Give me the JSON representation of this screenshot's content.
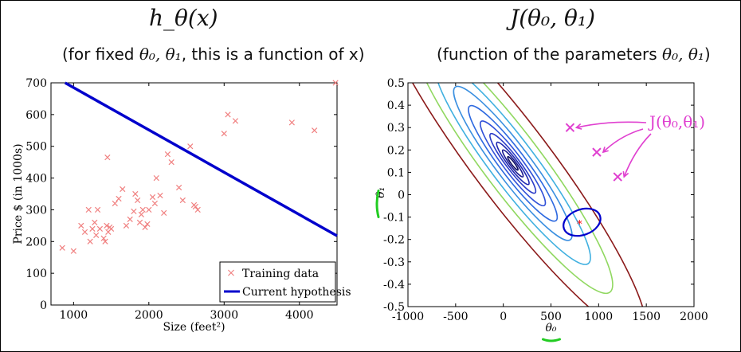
{
  "left_panel": {
    "title": "h_θ(x)",
    "subtitle_pre": "(for fixed ",
    "subtitle_math": "θ₀, θ₁",
    "subtitle_post": ", this is a function of x)"
  },
  "right_panel": {
    "title": "J(θ₀, θ₁)",
    "subtitle_pre": "(function of the parameters ",
    "subtitle_math": "θ₀, θ₁",
    "subtitle_post": ")"
  },
  "colors": {
    "training": "#f08080",
    "hypothesis": "#0000cc",
    "annotation": "#e040d0",
    "optimum": "#ff0000",
    "underline": "#22cc22"
  },
  "chart_data": [
    {
      "type": "scatter",
      "xlabel": "Size (feet²)",
      "ylabel": "Price $ (in 1000s)",
      "xlim": [
        700,
        4500
      ],
      "ylim": [
        0,
        700
      ],
      "xticks": [
        1000,
        2000,
        3000,
        4000
      ],
      "yticks": [
        0,
        100,
        200,
        300,
        400,
        500,
        600,
        700
      ],
      "legend_position": "bottom-right",
      "series": [
        {
          "name": "Training data",
          "marker": "x",
          "x": [
            850,
            1000,
            1100,
            1150,
            1200,
            1220,
            1250,
            1280,
            1300,
            1320,
            1350,
            1400,
            1420,
            1440,
            1450,
            1460,
            1480,
            1500,
            1550,
            1600,
            1650,
            1700,
            1750,
            1800,
            1820,
            1850,
            1880,
            1900,
            1920,
            1950,
            1980,
            2000,
            2050,
            2080,
            2100,
            2150,
            2200,
            2250,
            2300,
            2400,
            2450,
            2550,
            2600,
            2620,
            2650,
            3000,
            3050,
            3150,
            3900,
            4200,
            4480
          ],
          "y": [
            180,
            170,
            250,
            230,
            300,
            200,
            240,
            260,
            220,
            300,
            240,
            210,
            200,
            250,
            465,
            230,
            245,
            240,
            320,
            335,
            365,
            250,
            270,
            295,
            350,
            330,
            260,
            285,
            300,
            245,
            255,
            300,
            340,
            320,
            400,
            345,
            290,
            475,
            450,
            370,
            330,
            500,
            315,
            310,
            300,
            540,
            600,
            580,
            575,
            550,
            700
          ]
        },
        {
          "name": "Current hypothesis",
          "type": "line",
          "x": [
            700,
            4500
          ],
          "y": [
            725,
            218
          ]
        }
      ]
    },
    {
      "type": "contour",
      "xlabel": "θ₀",
      "ylabel": "θ₁",
      "xlim": [
        -1000,
        2000
      ],
      "ylim": [
        -0.5,
        0.5
      ],
      "xticks": [
        -1000,
        -500,
        0,
        500,
        1000,
        1500,
        2000
      ],
      "xtick_labels": [
        "-1000",
        "-500",
        "0",
        "500",
        "1000",
        "1500",
        "2000"
      ],
      "yticks": [
        -0.5,
        -0.4,
        -0.3,
        -0.2,
        -0.1,
        0,
        0.1,
        0.2,
        0.3,
        0.4,
        0.5
      ],
      "ytick_labels": [
        "-0.5",
        "-0.4",
        "-0.3",
        "-0.2",
        "-0.1",
        "0",
        "0.1",
        "0.2",
        "0.3",
        "0.4",
        "0.5"
      ],
      "center": [
        100,
        0.14
      ],
      "contour_colors": [
        "#111166",
        "#1a1a90",
        "#1f28b0",
        "#2c3cc8",
        "#3050d8",
        "#2f6ae0",
        "#3a8fe0",
        "#40b0e0",
        "#90d860",
        "#8b1a1a"
      ],
      "contour_scales": [
        0.07,
        0.14,
        0.22,
        0.31,
        0.44,
        0.6,
        0.8,
        1.05,
        1.35,
        1.8
      ],
      "highlighted": {
        "theta0": 800,
        "theta1": -0.13,
        "color": "#0000cc"
      },
      "annotated_points": [
        {
          "theta0": 700,
          "theta1": 0.3
        },
        {
          "theta0": 980,
          "theta1": 0.19
        },
        {
          "theta0": 1200,
          "theta1": 0.08
        }
      ],
      "annotation_label": "J(θ₀,θ₁)"
    }
  ]
}
